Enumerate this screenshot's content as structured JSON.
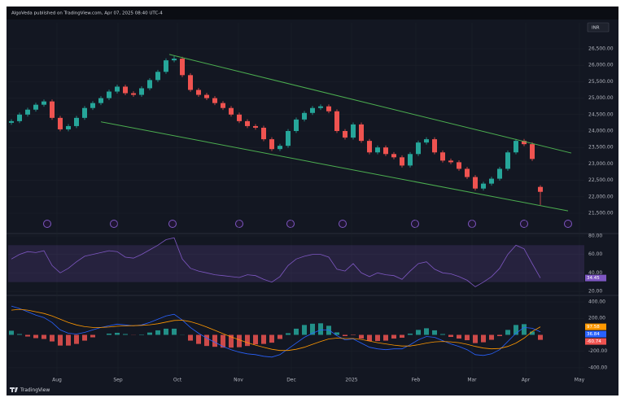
{
  "header": {
    "publisher": "AlgoVeda published on TradingView.com, Apr 07, 2025 08:40 UTC-4",
    "currency": "INR"
  },
  "footer": {
    "brand": "TradingView"
  },
  "chart_data": [
    {
      "type": "candlestick",
      "categories": [
        null,
        null,
        null,
        null,
        null,
        null,
        null,
        null,
        null,
        null,
        null,
        null,
        null,
        null,
        null,
        null,
        null,
        null,
        null,
        null,
        null,
        null,
        null,
        null,
        null,
        null,
        null,
        null,
        null,
        null,
        null,
        null,
        null,
        null,
        null,
        null,
        null,
        null,
        null,
        null,
        null,
        null,
        null,
        null,
        null,
        null,
        null,
        null,
        null,
        null,
        null,
        null,
        null,
        null,
        null,
        null,
        null,
        null,
        null,
        null,
        null,
        null,
        null,
        null,
        null,
        null
      ],
      "open": [
        24250,
        24300,
        24500,
        24650,
        24800,
        24900,
        24400,
        24050,
        24150,
        24400,
        24700,
        24850,
        25000,
        25200,
        25350,
        25150,
        25100,
        25300,
        25550,
        25800,
        26150,
        26200,
        25700,
        25250,
        25100,
        25000,
        24850,
        24700,
        24500,
        24300,
        24150,
        24100,
        23750,
        23450,
        23550,
        24000,
        24350,
        24550,
        24700,
        24750,
        24600,
        24000,
        23800,
        24200,
        23700,
        23350,
        23500,
        23300,
        23200,
        22950,
        23300,
        23650,
        23750,
        23350,
        23100,
        23050,
        22850,
        22600,
        22250,
        22400,
        22550,
        22850,
        23350,
        23700,
        23600,
        22300
      ],
      "high": [
        24360,
        24560,
        24710,
        24860,
        24960,
        24960,
        24460,
        24210,
        24460,
        24760,
        24910,
        25060,
        25260,
        25410,
        25410,
        25210,
        25360,
        25610,
        25860,
        26210,
        26280,
        26260,
        25760,
        25310,
        25160,
        25060,
        24910,
        24760,
        24560,
        24360,
        24210,
        24160,
        23810,
        23610,
        24060,
        24410,
        24610,
        24760,
        24810,
        24810,
        24660,
        24060,
        24260,
        24260,
        23760,
        23560,
        23560,
        23360,
        23260,
        23360,
        23710,
        23810,
        23810,
        23410,
        23160,
        23110,
        22910,
        22660,
        22460,
        22610,
        22910,
        23410,
        23760,
        23760,
        23660,
        22350
      ],
      "low": [
        24190,
        24240,
        24440,
        24590,
        24740,
        24340,
        23990,
        23990,
        24090,
        24340,
        24640,
        24790,
        24940,
        25140,
        25090,
        25040,
        25040,
        25240,
        25490,
        25740,
        26090,
        25640,
        25190,
        25040,
        24940,
        24790,
        24640,
        24440,
        24240,
        24090,
        24040,
        23690,
        23390,
        23390,
        23490,
        23940,
        24290,
        24490,
        24640,
        24540,
        23940,
        23740,
        23740,
        23640,
        23290,
        23290,
        23240,
        23140,
        22890,
        22890,
        23240,
        23590,
        23290,
        23040,
        22990,
        22790,
        22540,
        22190,
        22190,
        22340,
        22490,
        22790,
        23290,
        23540,
        23090,
        21750
      ],
      "close": [
        24300,
        24500,
        24650,
        24800,
        24900,
        24400,
        24050,
        24150,
        24400,
        24700,
        24850,
        25000,
        25200,
        25350,
        25150,
        25100,
        25300,
        25550,
        25800,
        26150,
        26200,
        25700,
        25250,
        25100,
        25000,
        24850,
        24700,
        24500,
        24300,
        24150,
        24100,
        23750,
        23450,
        23550,
        24000,
        24350,
        24550,
        24700,
        24750,
        24600,
        24000,
        23800,
        24200,
        23700,
        23350,
        23500,
        23300,
        23200,
        22950,
        23300,
        23650,
        23750,
        23350,
        23100,
        23050,
        22850,
        22600,
        22250,
        22400,
        22550,
        22850,
        23350,
        23700,
        23600,
        23150,
        22150
      ],
      "colors": {
        "up": "#26a69a",
        "down": "#ef5350"
      },
      "xlim": [
        -0.4,
        70.4
      ],
      "xticks": [
        {
          "value": 5.6,
          "label": "Aug"
        },
        {
          "value": 13.1,
          "label": "Sep"
        },
        {
          "value": 20.4,
          "label": "Oct"
        },
        {
          "value": 27.9,
          "label": "Nov"
        },
        {
          "value": 34.4,
          "label": "Dec"
        },
        {
          "value": 41.8,
          "label": "2025"
        },
        {
          "value": 49.7,
          "label": "Feb"
        },
        {
          "value": 56.6,
          "label": "Mar"
        },
        {
          "value": 63.2,
          "label": "Apr"
        },
        {
          "value": 69.8,
          "label": "May"
        }
      ],
      "ylim": [
        20906,
        27292
      ],
      "yticks": [
        {
          "value": 26500,
          "label": "26,500.00"
        },
        {
          "value": 26000,
          "label": "26,000.00"
        },
        {
          "value": 25500,
          "label": "25,500.00"
        },
        {
          "value": 25000,
          "label": "25,000.00"
        },
        {
          "value": 24500,
          "label": "24,500.00"
        },
        {
          "value": 24000,
          "label": "24,000.00"
        },
        {
          "value": 23500,
          "label": "23,500.00"
        },
        {
          "value": 23000,
          "label": "23,000.00"
        },
        {
          "value": 22500,
          "label": "22,500.00"
        },
        {
          "value": 22000,
          "label": "22,000.00"
        },
        {
          "value": 21500,
          "label": "21,500.00"
        }
      ],
      "grid": true,
      "trendlines": [
        {
          "x": [
            19.4,
            68.8
          ],
          "y": [
            26330,
            23330
          ],
          "color": "#4caf50"
        },
        {
          "x": [
            11,
            68.4
          ],
          "y": [
            24280,
            21570
          ],
          "color": "#4caf50"
        }
      ]
    },
    {
      "type": "line",
      "values": [
        55,
        60,
        63,
        62,
        64,
        48,
        40,
        45,
        52,
        58,
        60,
        62,
        64,
        63,
        57,
        56,
        60,
        65,
        70,
        76,
        78,
        55,
        45,
        42,
        40,
        38,
        37,
        36,
        35,
        38,
        37,
        33,
        30,
        36,
        48,
        55,
        58,
        60,
        60,
        57,
        44,
        42,
        50,
        40,
        36,
        40,
        38,
        37,
        33,
        42,
        50,
        52,
        44,
        40,
        39,
        36,
        32,
        25,
        30,
        36,
        45,
        60,
        70,
        66,
        50,
        34.45
      ],
      "color": "#7e57c2",
      "band": [
        30,
        70
      ],
      "band_color": "#7e57c2",
      "ylim": [
        16.5,
        82.6
      ],
      "yticks": [
        {
          "value": 80,
          "label": "80.00"
        },
        {
          "value": 60,
          "label": "60.00"
        },
        {
          "value": 40,
          "label": "40.00"
        },
        {
          "value": 20,
          "label": "20.00"
        }
      ],
      "grid": true
    },
    {
      "type": "macd",
      "histogram": {
        "values": [
          50,
          10,
          -20,
          -40,
          -50,
          -80,
          -130,
          -130,
          -110,
          -70,
          -30,
          0,
          15,
          25,
          10,
          -2,
          5,
          28,
          55,
          75,
          75,
          2,
          -70,
          -110,
          -135,
          -145,
          -155,
          -155,
          -150,
          -135,
          -115,
          -110,
          -95,
          -50,
          20,
          75,
          120,
          135,
          140,
          110,
          30,
          -15,
          -5,
          -45,
          -75,
          -75,
          -70,
          -45,
          -35,
          15,
          60,
          80,
          55,
          10,
          -25,
          -45,
          -65,
          -100,
          -90,
          -60,
          -15,
          60,
          120,
          130,
          40,
          -60.74
        ],
        "colors": {
          "positive": "#26a69a",
          "negative": "#ef5350"
        }
      },
      "macd": {
        "values": [
          350,
          320,
          280,
          240,
          210,
          150,
          60,
          20,
          10,
          30,
          60,
          90,
          110,
          130,
          120,
          110,
          120,
          150,
          190,
          230,
          250,
          180,
          90,
          20,
          -40,
          -90,
          -140,
          -180,
          -210,
          -230,
          -240,
          -260,
          -270,
          -240,
          -170,
          -100,
          -30,
          20,
          60,
          60,
          -10,
          -60,
          -50,
          -100,
          -150,
          -170,
          -180,
          -170,
          -170,
          -120,
          -60,
          -20,
          -30,
          -70,
          -110,
          -140,
          -180,
          -240,
          -250,
          -230,
          -180,
          -80,
          20,
          90,
          80,
          36.84
        ],
        "color": "#2962ff"
      },
      "signal": {
        "values": [
          300,
          310,
          300,
          280,
          260,
          230,
          190,
          150,
          120,
          100,
          90,
          90,
          95,
          105,
          110,
          112,
          115,
          122,
          135,
          155,
          175,
          178,
          160,
          130,
          95,
          55,
          15,
          -25,
          -60,
          -95,
          -125,
          -150,
          -175,
          -190,
          -190,
          -175,
          -150,
          -115,
          -80,
          -50,
          -40,
          -45,
          -45,
          -55,
          -75,
          -95,
          -110,
          -125,
          -135,
          -135,
          -120,
          -100,
          -85,
          -80,
          -85,
          -95,
          -115,
          -140,
          -160,
          -170,
          -165,
          -140,
          -100,
          -40,
          40,
          97.58
        ],
        "color": "#ff9800"
      },
      "ylim": [
        -499,
        479
      ],
      "yticks": [
        {
          "value": 400,
          "label": "400.00"
        },
        {
          "value": 200,
          "label": "200.00"
        },
        {
          "value": -200,
          "label": "-200.00"
        },
        {
          "value": -400,
          "label": "-400.00"
        }
      ],
      "grid": true
    }
  ]
}
